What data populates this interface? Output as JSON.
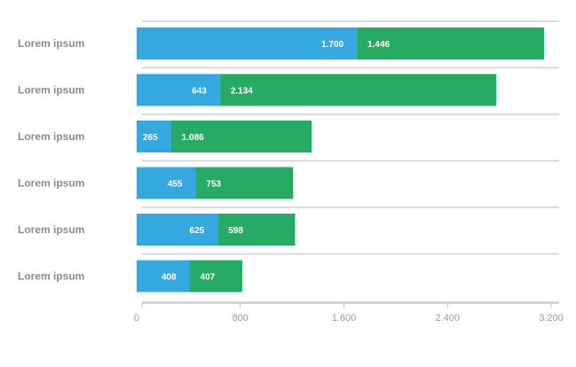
{
  "chart_data": {
    "type": "bar",
    "orientation": "horizontal",
    "stacked": true,
    "categories": [
      "Lorem ipsum",
      "Lorem ipsum",
      "Lorem ipsum",
      "Lorem ipsum",
      "Lorem ipsum",
      "Lorem ipsum"
    ],
    "series": [
      {
        "color": "#35a8e0",
        "values": [
          1700,
          643,
          265,
          455,
          625,
          408
        ],
        "labels": [
          "1.700",
          "643",
          "265",
          "455",
          "625",
          "408"
        ]
      },
      {
        "color": "#27aa64",
        "values": [
          1446,
          2134,
          1086,
          753,
          598,
          407
        ],
        "labels": [
          "1.446",
          "2.134",
          "1.086",
          "753",
          "598",
          "407"
        ]
      }
    ],
    "xlim": [
      0,
      3200
    ],
    "xticks": [
      0,
      800,
      1600,
      2400,
      3200
    ],
    "xtick_labels": [
      "0",
      "800",
      "1.600",
      "2.400",
      "3.200"
    ],
    "grid": true,
    "legend": "none"
  }
}
